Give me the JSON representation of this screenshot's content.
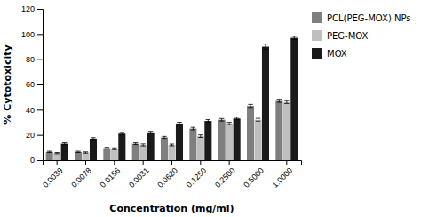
{
  "chart_data": {
    "type": "bar",
    "xlabel": "Concentration (mg/ml)",
    "ylabel": "% Cytotoxicity",
    "categories": [
      "0.0039",
      "0.0078",
      "0.0156",
      "0.0031",
      "0.0620",
      "0.1250",
      "0.2500",
      "0.5000",
      "1.0000"
    ],
    "series": [
      {
        "name": "PCL(PEG-MOX) NPs",
        "color": "#7f7f7f",
        "values": [
          6.5,
          6.5,
          9.5,
          13,
          18,
          25,
          32,
          43,
          47
        ],
        "errors": [
          0.5,
          0.5,
          0.6,
          0.7,
          0.8,
          1.0,
          1.0,
          1.2,
          1.2
        ]
      },
      {
        "name": "PEG-MOX",
        "color": "#bfbfbf",
        "values": [
          5.5,
          6,
          9,
          12,
          12,
          19,
          29,
          32,
          46
        ],
        "errors": [
          0.5,
          0.5,
          0.7,
          0.8,
          0.7,
          1.0,
          0.9,
          1.1,
          1.1
        ]
      },
      {
        "name": "MOX",
        "color": "#1a1a1a",
        "values": [
          13,
          17,
          21,
          22,
          29,
          31,
          33,
          90,
          97
        ],
        "errors": [
          0.8,
          0.8,
          1.0,
          0.8,
          1.0,
          1.1,
          1.0,
          2.0,
          1.2
        ]
      }
    ],
    "ylim": [
      0,
      120
    ],
    "yticks": [
      0,
      20,
      40,
      60,
      80,
      100,
      120
    ],
    "grid": false,
    "legend": "right"
  }
}
